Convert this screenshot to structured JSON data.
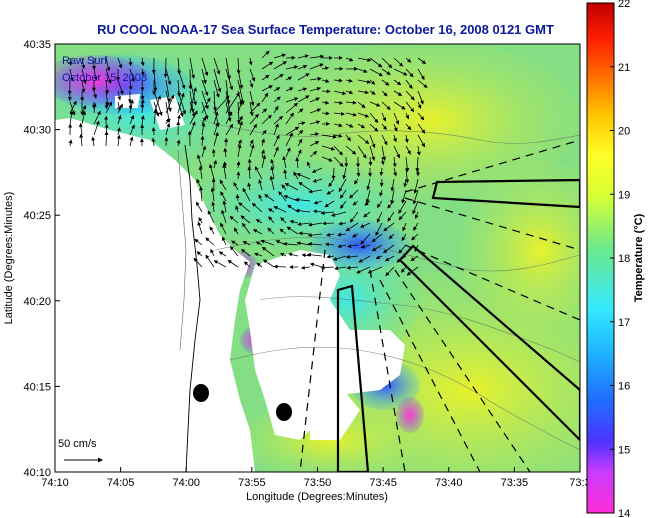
{
  "title": "RU COOL  NOAA-17  Sea Surface Temperature:  October 16, 2008 0121 GMT",
  "overlay_label_1": "Raw Surf",
  "overlay_label_2": "October 15, 2008",
  "x_axis_label": "Longitude (Degrees:Minutes)",
  "y_axis_label": "Latitude (Degrees:Minutes)",
  "colorbar_label": "Temperature (°C)",
  "x_ticks": [
    "74:10",
    "74:05",
    "74:00",
    "73:55",
    "73:50",
    "73:45",
    "73:40",
    "73:35",
    "73:3"
  ],
  "y_ticks": [
    "40:35",
    "40:30",
    "40:25",
    "40:20",
    "40:15",
    "40:10"
  ],
  "colorbar_ticks": [
    "22",
    "21",
    "20",
    "19",
    "18",
    "17",
    "16",
    "15",
    "14"
  ],
  "scale_label": "50 cm/s",
  "colors": {
    "title_blue": "#0b1a9c",
    "land": "#ffffff",
    "water_green": "#7fdc86",
    "water_yellow": "#eaf02c",
    "cool_blue": "#2f53ff",
    "magenta": "#ff3bd2"
  }
}
